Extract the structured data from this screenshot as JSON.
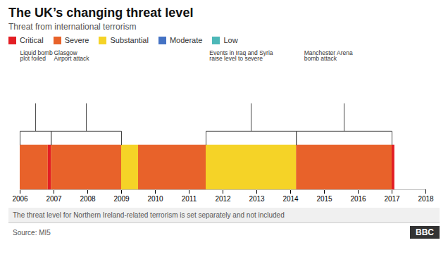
{
  "chart_data": {
    "type": "bar",
    "orientation": "horizontal",
    "title": "The UK’s changing threat level",
    "subtitle": "Threat from international terrorism",
    "series": [
      {
        "name": "Critical",
        "color": "#e31e24",
        "values": [
          [
            2006.83,
            2006.92
          ],
          [
            2017.0,
            2017.08
          ]
        ]
      },
      {
        "name": "Severe",
        "color": "#e8622a",
        "values": [
          [
            2006.0,
            2006.83
          ],
          [
            2006.92,
            2009.0
          ],
          [
            2009.5,
            2011.5
          ],
          [
            2014.17,
            2017.0
          ]
        ]
      },
      {
        "name": "Substantial",
        "color": "#f5d327",
        "values": [
          [
            2009.0,
            2009.5
          ],
          [
            2011.5,
            2014.17
          ]
        ]
      },
      {
        "name": "Moderate",
        "color": "#4472c4",
        "values": []
      },
      {
        "name": "Low",
        "color": "#4db8b8",
        "values": []
      }
    ],
    "xlim": [
      2006,
      2018
    ],
    "xticks": [
      2006,
      2007,
      2008,
      2009,
      2010,
      2011,
      2012,
      2013,
      2014,
      2015,
      2016,
      2017,
      2018
    ],
    "annotations": [
      {
        "text": "Liquid bomb\nplot foiled",
        "x_bracket_start": 2006.0,
        "x_bracket_end": 2006.92,
        "x_text": 2006.0
      },
      {
        "text": "Glasgow\nAirport attack",
        "x_bracket_start": 2006.92,
        "x_bracket_end": 2009.0,
        "x_text": 2007.0
      },
      {
        "text": "Events in Iraq and Syria\nraise level to severe",
        "x_bracket_start": 2011.5,
        "x_bracket_end": 2014.17,
        "x_text": 2011.6
      },
      {
        "text": "Manchester Arena\nbomb attack",
        "x_bracket_start": 2014.17,
        "x_bracket_end": 2017.0,
        "x_text": 2014.4
      }
    ],
    "footnote": "The threat level for Northern Ireland-related terrorism is set separately and not included",
    "source": "Source: MI5",
    "credit": "BBC"
  }
}
